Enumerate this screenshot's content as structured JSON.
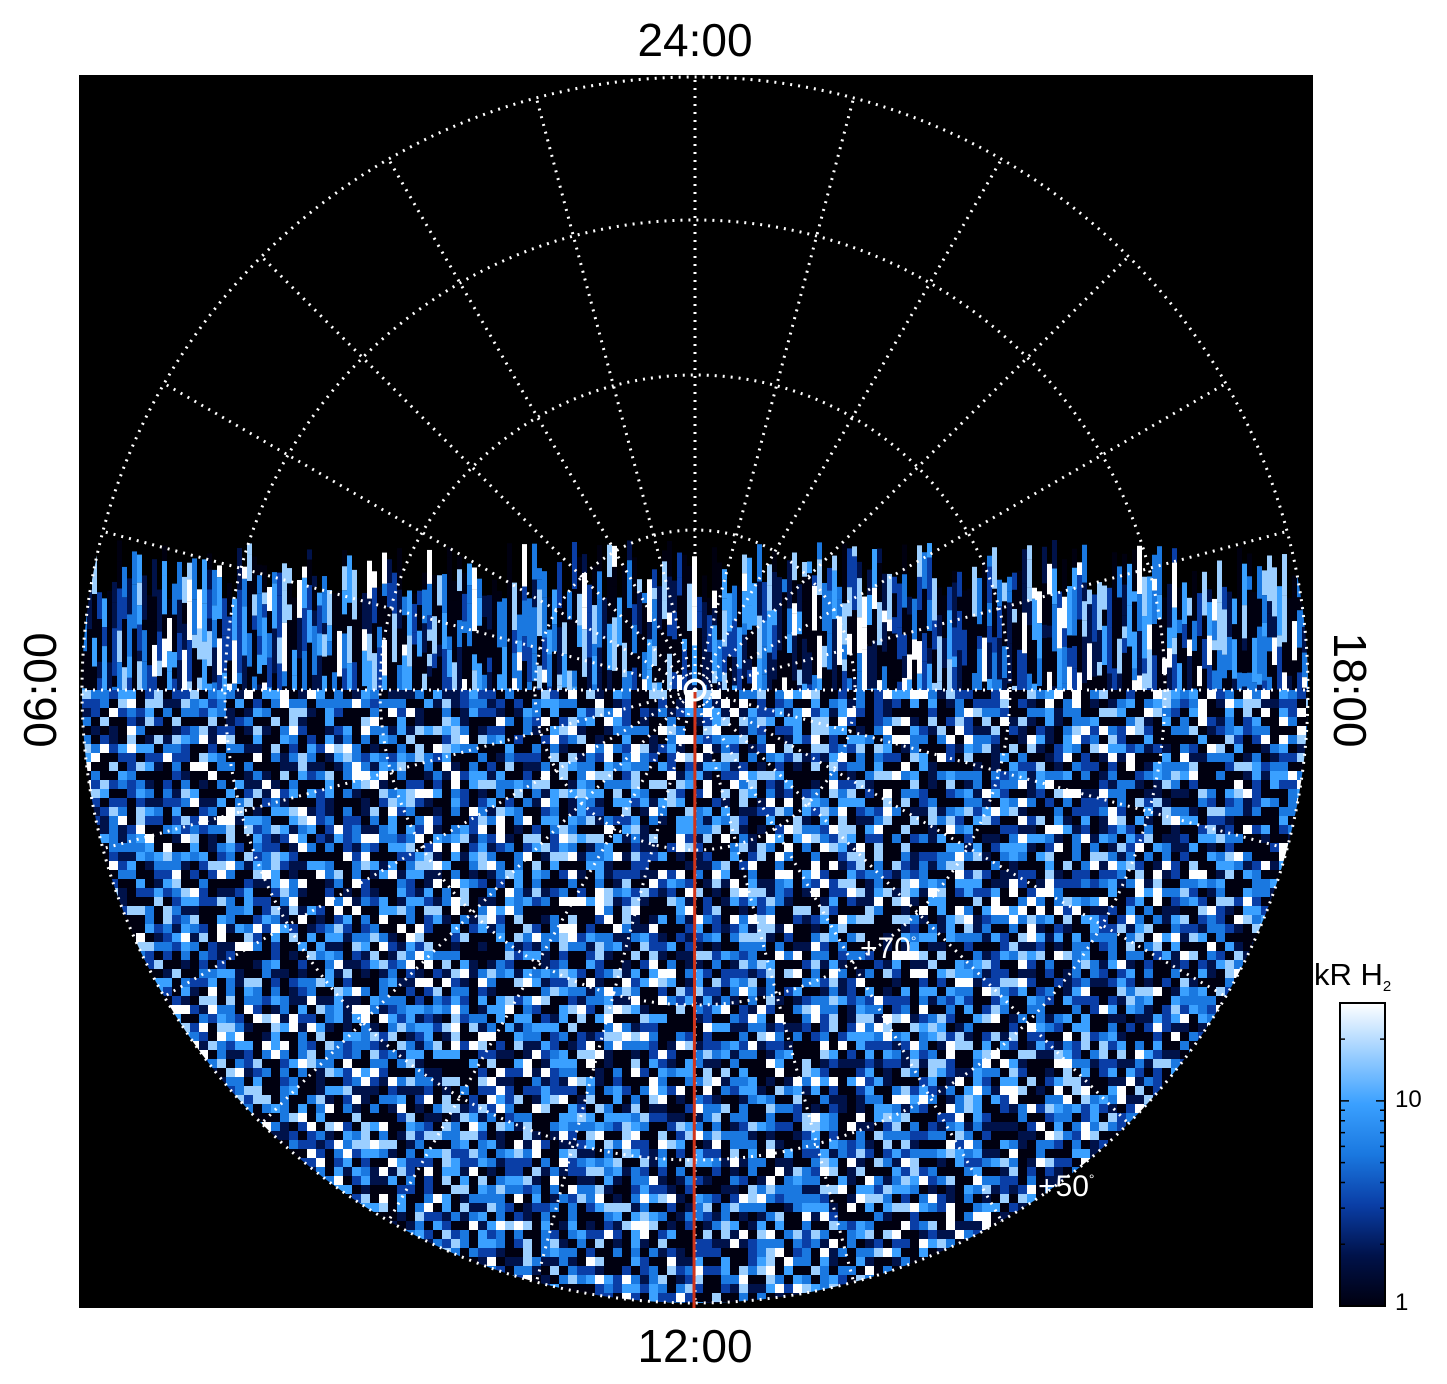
{
  "figure": {
    "local_time_labels": {
      "top": "24:00",
      "bottom": "12:00",
      "left": "06:00",
      "right": "18:00"
    },
    "latitude_labels": [
      {
        "text": "+70",
        "unit": "°"
      },
      {
        "text": "+50",
        "unit": "°"
      }
    ],
    "colorbar": {
      "title": "kR H",
      "title_subscript": "2",
      "scale": "log",
      "ticks": [
        "10",
        "1"
      ],
      "range": [
        1,
        30
      ],
      "colors": [
        "#000010",
        "#00124a",
        "#0a3ea6",
        "#1a78e0",
        "#3aa0ff",
        "#9ccfff",
        "#ffffff"
      ]
    },
    "colors": {
      "background": "#000000",
      "grid": "#ffffff",
      "meridian_line": "#d0341a",
      "page": "#ffffff"
    },
    "grid": {
      "style": "dotted",
      "meridian_count": 24,
      "projection": "polar, north pole at center"
    }
  }
}
